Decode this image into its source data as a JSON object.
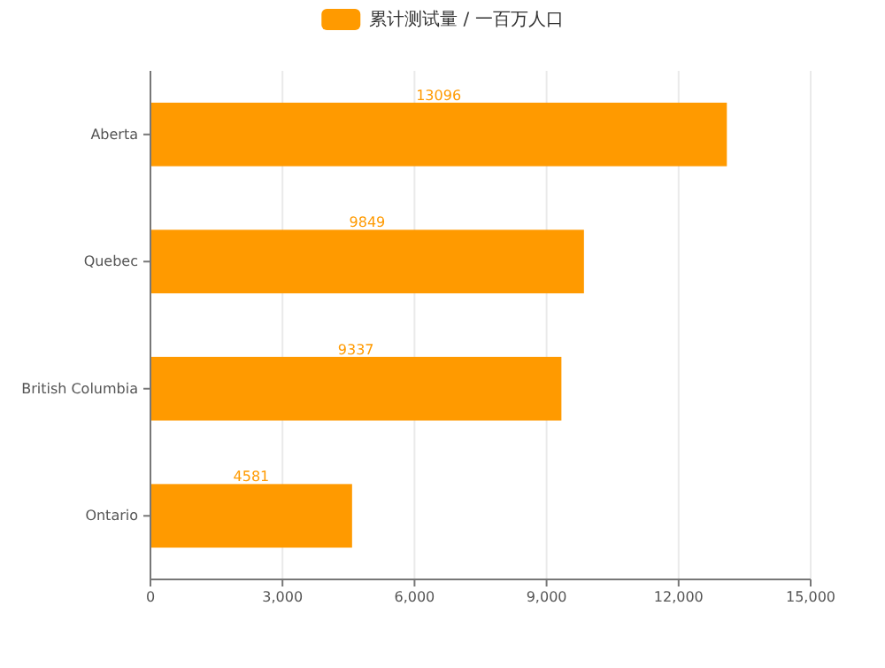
{
  "chart_data": {
    "type": "bar",
    "orientation": "horizontal",
    "categories": [
      "Aberta",
      "Quebec",
      "British Columbia",
      "Ontario"
    ],
    "series": [
      {
        "name": "累计测试量 / 一百万人口",
        "color": "#ff9a00",
        "values": [
          13096,
          9849,
          9337,
          4581
        ]
      }
    ],
    "xlim": [
      0,
      15000
    ],
    "xticks": [
      {
        "value": 0,
        "label": "0"
      },
      {
        "value": 3000,
        "label": "3,000"
      },
      {
        "value": 6000,
        "label": "6,000"
      },
      {
        "value": 9000,
        "label": "9,000"
      },
      {
        "value": 12000,
        "label": "12,000"
      },
      {
        "value": 15000,
        "label": "15,000"
      }
    ],
    "grid": "x",
    "legend": "top",
    "data_labels": true
  }
}
